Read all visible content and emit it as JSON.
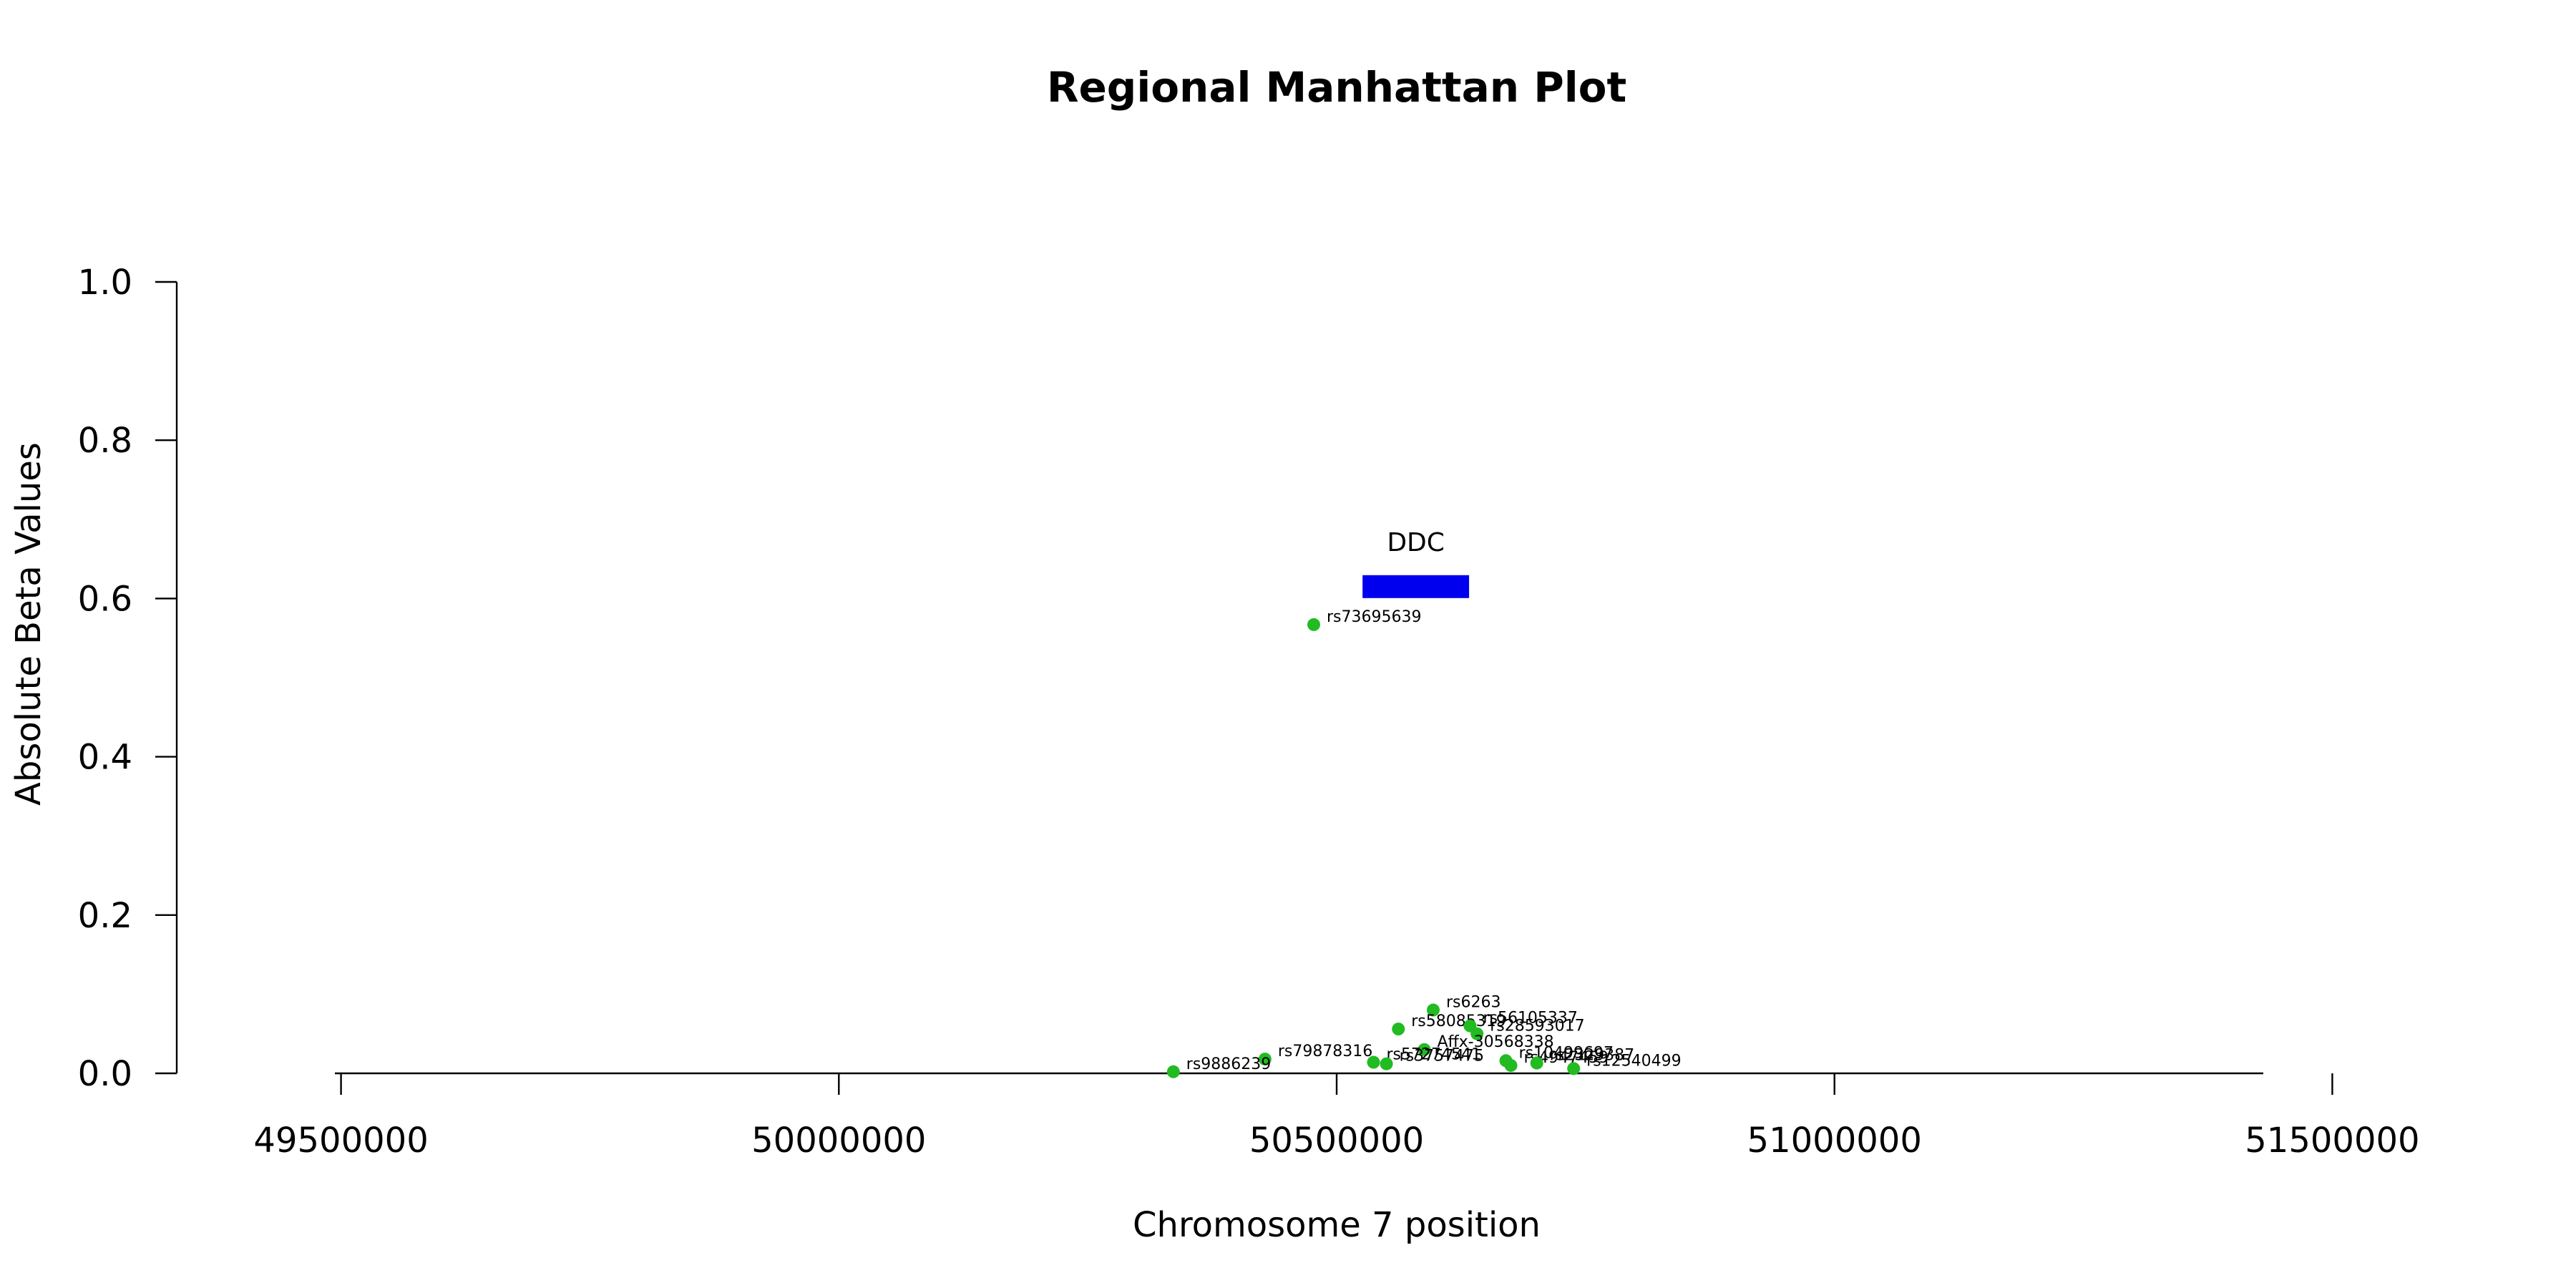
{
  "chart_data": {
    "type": "scatter",
    "title": "Regional Manhattan Plot",
    "xlabel": "Chromosome 7 position",
    "ylabel": "Absolute Beta Values",
    "xlim": [
      49335000,
      51665000
    ],
    "ylim": [
      0,
      1
    ],
    "x_ticks": [
      49500000,
      50000000,
      50500000,
      51000000,
      51500000
    ],
    "y_ticks": [
      0.0,
      0.2,
      0.4,
      0.6,
      0.8,
      1.0
    ],
    "x_tick_labels": [
      "49500000",
      "50000000",
      "50500000",
      "51000000",
      "51500000"
    ],
    "y_tick_labels": [
      "0.0",
      "0.2",
      "0.4",
      "0.6",
      "0.8",
      "1.0"
    ],
    "point_color": "#22bb22",
    "gene_color": "#0000ee",
    "genes": [
      {
        "name": "DDC",
        "start": 50526000,
        "end": 50633000,
        "y": 0.615
      }
    ],
    "points": [
      {
        "label": "rs73695639",
        "x": 50477000,
        "y": 0.567
      },
      {
        "label": "rs6263",
        "x": 50597000,
        "y": 0.08
      },
      {
        "label": "rs58085319",
        "x": 50562000,
        "y": 0.056
      },
      {
        "label": "rs56105337",
        "x": 50634000,
        "y": 0.06
      },
      {
        "label": "rs28593017",
        "x": 50641000,
        "y": 0.05
      },
      {
        "label": "Affx-30568338",
        "x": 50588000,
        "y": 0.03
      },
      {
        "label": "rs79878316",
        "x": 50428000,
        "y": 0.018
      },
      {
        "label": "rs57274541",
        "x": 50537000,
        "y": 0.014
      },
      {
        "label": "rs3757475",
        "x": 50550000,
        "y": 0.012
      },
      {
        "label": "rs9886239",
        "x": 50336000,
        "y": 0.002
      },
      {
        "label": "rs10499697",
        "x": 50670000,
        "y": 0.016
      },
      {
        "label": "rs4947459",
        "x": 50675000,
        "y": 0.01
      },
      {
        "label": "rs2329387",
        "x": 50701000,
        "y": 0.013
      },
      {
        "label": "rs12540499",
        "x": 50738000,
        "y": 0.006
      }
    ]
  }
}
